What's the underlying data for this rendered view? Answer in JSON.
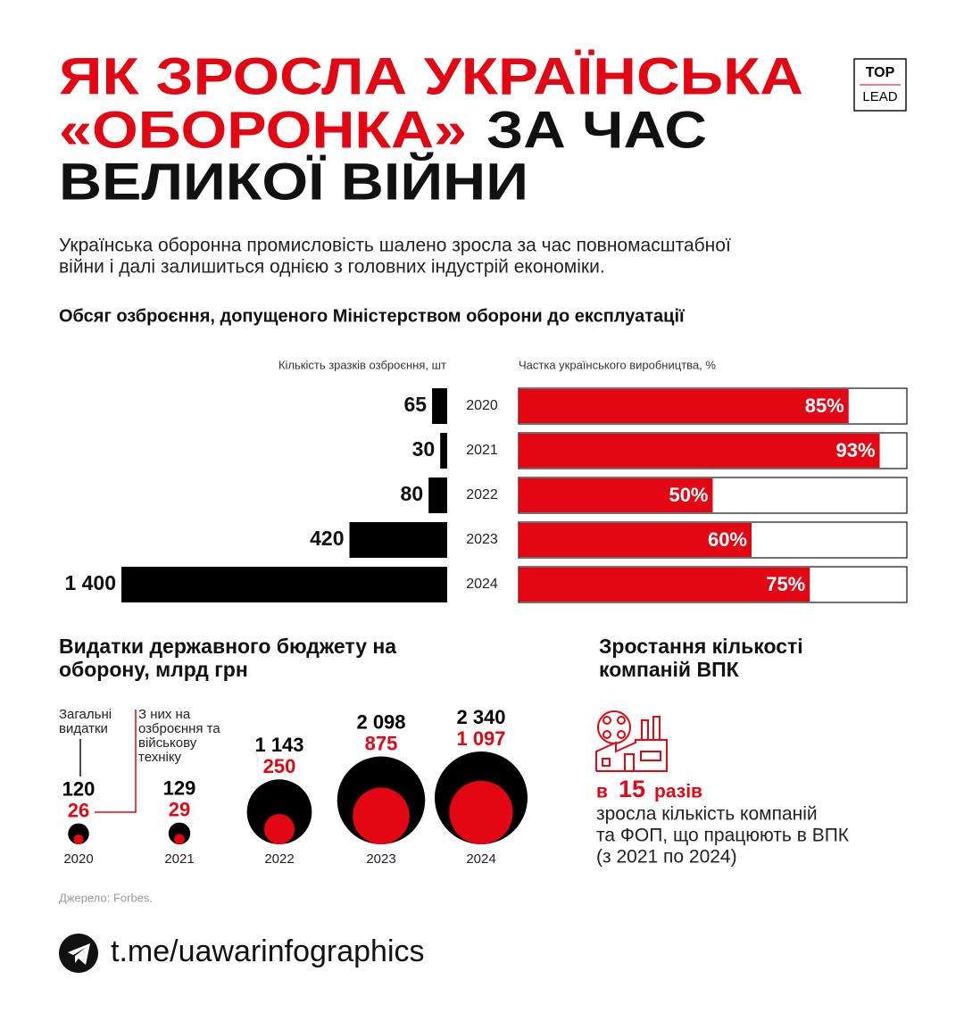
{
  "title": {
    "line1": "ЯК ЗРОСЛА УКРАЇНСЬКА",
    "line2_red": "«ОБОРОНКА»",
    "line2_black": "ЗА ЧАС",
    "line3": "ВЕЛИКОЇ ВІЙНИ"
  },
  "logo": {
    "top": "TOP",
    "bottom": "LEAD"
  },
  "intro": [
    "Українська оборонна промисловість шалено зросла за час повномасштабної",
    "війни і далі залишиться однією з головних індустрій економіки."
  ],
  "section_title": "Обсяг озброєння, допущеного Міністерством оборони до експлуатації",
  "chart_data": [
    {
      "type": "bar",
      "subtitle": "Кількість зразків озброєння, шт",
      "categories": [
        "2020",
        "2021",
        "2022",
        "2023",
        "2024"
      ],
      "values": [
        65,
        30,
        80,
        420,
        1400
      ],
      "value_labels": [
        "65",
        "30",
        "80",
        "420",
        "1 400"
      ],
      "color": "#000000"
    },
    {
      "type": "pctbar",
      "subtitle": "Частка українського виробництва, %",
      "values": [
        85,
        93,
        50,
        60,
        75
      ],
      "value_labels": [
        "85%",
        "93%",
        "50%",
        "60%",
        "75%"
      ],
      "xlim": [
        0,
        100
      ],
      "color": "#e30613"
    },
    {
      "type": "bubble",
      "title": "Видатки державного бюджету на оборону, млрд грн",
      "categories": [
        "2020",
        "2021",
        "2022",
        "2023",
        "2024"
      ],
      "series": [
        {
          "name": "Загальні видатки",
          "color": "#000000",
          "values": [
            120,
            129,
            1143,
            2098,
            2340
          ],
          "value_labels": [
            "120",
            "129",
            "1 143",
            "2 098",
            "2 340"
          ]
        },
        {
          "name": "З них на озброєння та військову техніку",
          "color": "#e30613",
          "values": [
            26,
            29,
            250,
            875,
            1097
          ],
          "value_labels": [
            "26",
            "29",
            "250",
            "875",
            "1 097"
          ]
        }
      ]
    }
  ],
  "companies": {
    "title": "Зростання кількості компаній ВПК",
    "highlight_prefix": "в",
    "highlight_number": "15",
    "highlight_suffix": "разів",
    "text": [
      "зросла кількість компаній",
      "та ФОП, що працюють в ВПК",
      "(з 2021 по 2024)"
    ]
  },
  "source": "Джерело: Forbes.",
  "footer": "t.me/uawarinfographics"
}
